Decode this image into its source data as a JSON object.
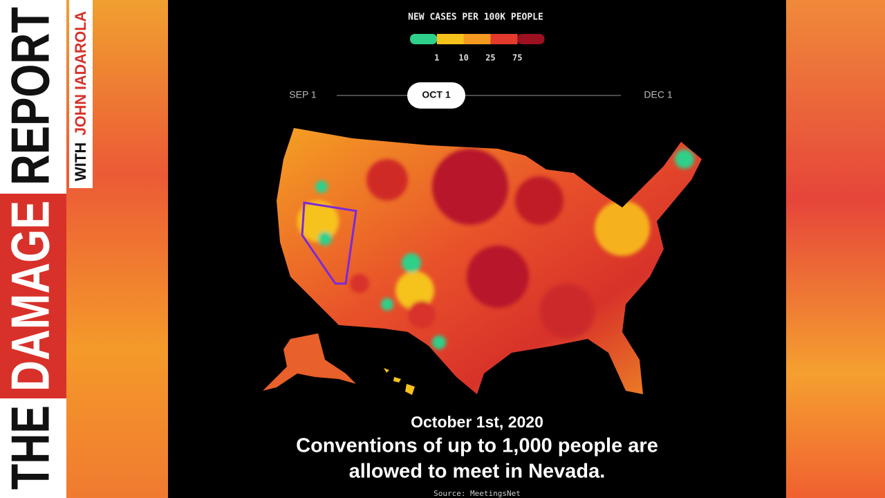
{
  "logo": {
    "the": "THE",
    "damage": "DAMAGE",
    "report": "REPORT",
    "with": "WITH",
    "name": "JOHN IADAROLA"
  },
  "legend": {
    "title": "NEW CASES PER 100K PEOPLE",
    "labels": [
      "1",
      "10",
      "25",
      "75"
    ],
    "colors": [
      "#2fd08a",
      "#f6c21c",
      "#f59a20",
      "#e23a2c",
      "#9c1020"
    ]
  },
  "timeline": {
    "start": "SEP 1",
    "current": "OCT 1",
    "end": "DEC 1"
  },
  "caption": {
    "date": "October 1st, 2020",
    "headline": [
      "Conventions of up to 1,000 people are",
      "allowed to meet in Nevada."
    ],
    "source": "Source: MeetingsNet"
  }
}
